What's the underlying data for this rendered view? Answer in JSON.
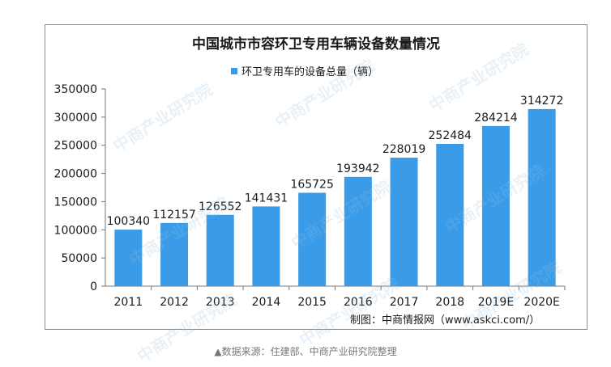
{
  "chart_data": {
    "type": "bar",
    "title": "中国城市市容环卫专用车辆设备数量情况",
    "categories": [
      "2011",
      "2012",
      "2013",
      "2014",
      "2015",
      "2016",
      "2017",
      "2018",
      "2019E",
      "2020E"
    ],
    "series": [
      {
        "name": "环卫专用车的设备总量（辆）",
        "values": [
          100340,
          112157,
          126552,
          141431,
          165725,
          193942,
          228019,
          252484,
          284214,
          314272
        ],
        "color": "#3a9ce8"
      }
    ],
    "y_ticks": [
      "350000",
      "300000",
      "250000",
      "200000",
      "150000",
      "100000",
      "50000",
      "0"
    ],
    "ylim": [
      0,
      350000
    ],
    "grid": false,
    "legend_position": "top-center",
    "source": "制图：中商情报网（www.askci.com/）"
  },
  "footnote": "▲数据来源：住建部、中商产业研究院整理",
  "watermark_text": "中商产业研究院"
}
